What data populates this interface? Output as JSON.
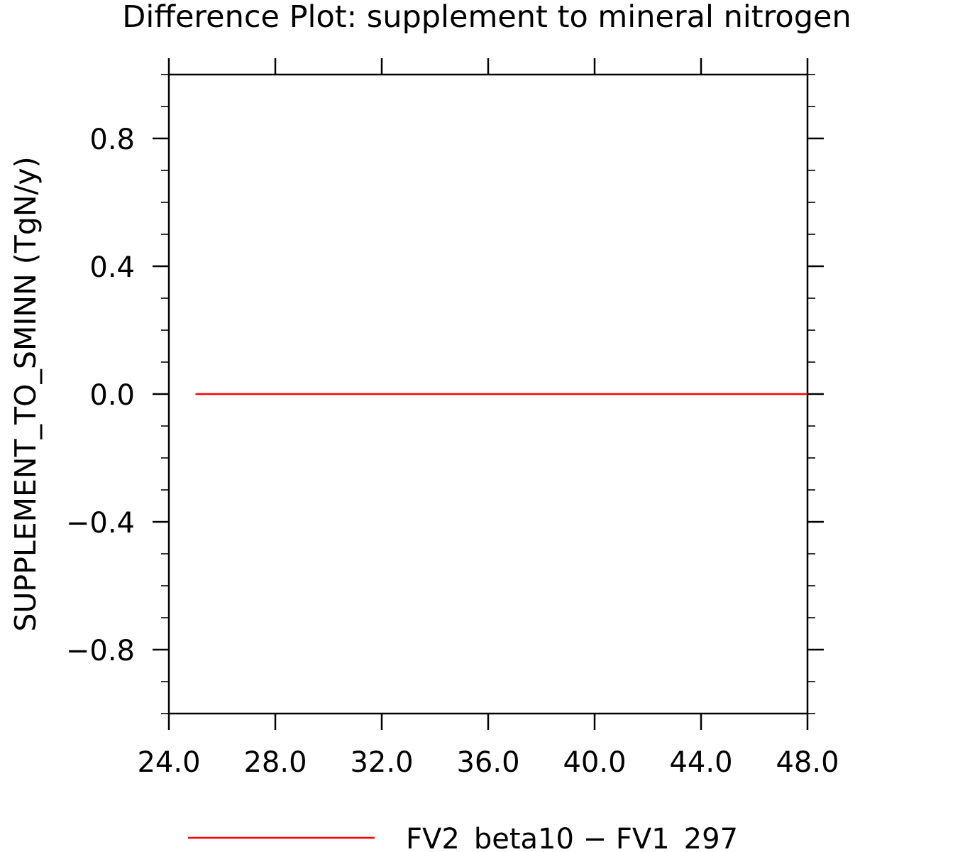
{
  "chart_data": {
    "type": "line",
    "title": "Difference Plot: supplement to mineral nitrogen",
    "xlabel": "",
    "ylabel": "SUPPLEMENT_TO_SMINN  (TgN/y)",
    "xlim": [
      24,
      48
    ],
    "ylim": [
      -1,
      1
    ],
    "x_ticks": [
      24,
      28,
      32,
      36,
      40,
      44,
      48
    ],
    "x_tick_labels": [
      "24.0",
      "28.0",
      "32.0",
      "36.0",
      "40.0",
      "44.0",
      "48.0"
    ],
    "y_ticks": [
      -0.8,
      -0.4,
      0.0,
      0.4,
      0.8
    ],
    "y_tick_labels": [
      "−0.8",
      "−0.4",
      "0.0",
      "0.4",
      "0.8"
    ],
    "grid": false,
    "legend_position": "bottom",
    "series": [
      {
        "name": "FV2_beta10 − FV1_297",
        "color": "#ff0000",
        "x": [
          25,
          26,
          27,
          28,
          29,
          30,
          31,
          32,
          33,
          34,
          35,
          36,
          37,
          38,
          39,
          40,
          41,
          42,
          43,
          44,
          45,
          46,
          47,
          48
        ],
        "y": [
          0,
          0,
          0,
          0,
          0,
          0,
          0,
          0,
          0,
          0,
          0,
          0,
          0,
          0,
          0,
          0,
          0,
          0,
          0,
          0,
          0,
          0,
          0,
          0
        ]
      }
    ]
  }
}
